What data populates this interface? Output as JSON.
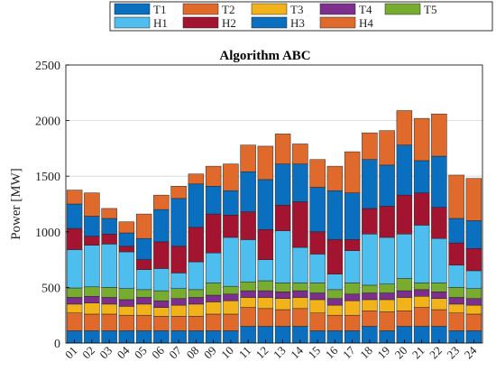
{
  "chart_data": {
    "type": "bar",
    "stacked": true,
    "title": "Algorithm ABC",
    "xlabel": "",
    "ylabel": "Power [MW]",
    "ylim": [
      0,
      2500
    ],
    "yticks": [
      0,
      500,
      1000,
      1500,
      2000,
      2500
    ],
    "grid": true,
    "legend_position": "top",
    "categories": [
      "01",
      "02",
      "03",
      "04",
      "05",
      "06",
      "07",
      "08",
      "09",
      "10",
      "11",
      "12",
      "13",
      "14",
      "15",
      "16",
      "17",
      "18",
      "19",
      "20",
      "21",
      "22",
      "23",
      "24"
    ],
    "series": [
      {
        "name": "T1",
        "color": "#0b6fbf",
        "values": [
          110,
          110,
          110,
          110,
          110,
          110,
          110,
          110,
          110,
          110,
          150,
          150,
          150,
          150,
          110,
          110,
          110,
          150,
          110,
          150,
          150,
          150,
          110,
          110
        ]
      },
      {
        "name": "T2",
        "color": "#e06a2b",
        "values": [
          160,
          150,
          150,
          140,
          140,
          130,
          130,
          130,
          150,
          150,
          170,
          160,
          150,
          160,
          160,
          140,
          140,
          140,
          170,
          140,
          170,
          150,
          160,
          150
        ]
      },
      {
        "name": "T3",
        "color": "#f2b31a",
        "values": [
          80,
          100,
          90,
          80,
          100,
          80,
          100,
          110,
          110,
          120,
          90,
          100,
          100,
          100,
          120,
          90,
          130,
          100,
          110,
          120,
          100,
          100,
          80,
          80
        ]
      },
      {
        "name": "T4",
        "color": "#7e2f8e",
        "values": [
          60,
          60,
          60,
          60,
          60,
          60,
          60,
          60,
          60,
          60,
          60,
          60,
          60,
          60,
          60,
          60,
          60,
          60,
          60,
          60,
          60,
          60,
          60,
          60
        ]
      },
      {
        "name": "T5",
        "color": "#77ac30",
        "values": [
          85,
          85,
          90,
          100,
          70,
          90,
          90,
          70,
          110,
          70,
          80,
          90,
          80,
          70,
          90,
          80,
          100,
          70,
          80,
          110,
          60,
          80,
          90,
          90
        ]
      },
      {
        "name": "H1",
        "color": "#4dbeee",
        "values": [
          345,
          375,
          390,
          330,
          180,
          200,
          140,
          250,
          270,
          440,
          380,
          190,
          470,
          320,
          260,
          140,
          290,
          460,
          420,
          400,
          520,
          400,
          200,
          160
        ]
      },
      {
        "name": "H2",
        "color": "#a2142f",
        "values": [
          190,
          80,
          90,
          50,
          90,
          240,
          240,
          310,
          350,
          200,
          250,
          270,
          230,
          410,
          200,
          310,
          100,
          230,
          280,
          350,
          290,
          280,
          200,
          200
        ]
      },
      {
        "name": "H3",
        "color": "#0b6fbf",
        "values": [
          220,
          180,
          140,
          120,
          190,
          290,
          430,
          390,
          250,
          220,
          360,
          450,
          370,
          340,
          400,
          440,
          420,
          440,
          370,
          450,
          290,
          460,
          220,
          250
        ]
      },
      {
        "name": "H4",
        "color": "#e06a2b",
        "values": [
          125,
          210,
          90,
          100,
          220,
          130,
          110,
          90,
          180,
          240,
          240,
          300,
          270,
          180,
          250,
          220,
          370,
          240,
          310,
          310,
          380,
          380,
          390,
          380
        ]
      }
    ]
  }
}
